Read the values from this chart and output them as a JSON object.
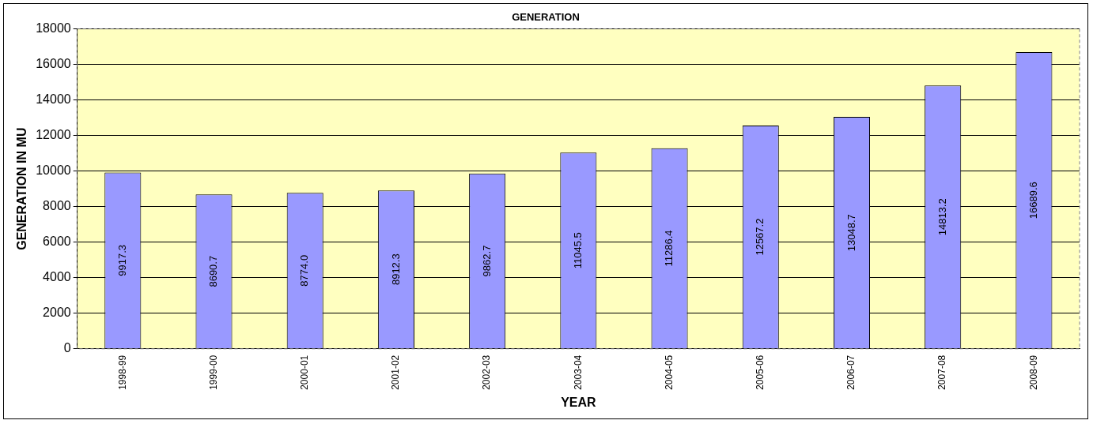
{
  "chart_data": {
    "type": "bar",
    "title": "GENERATION",
    "xlabel": "YEAR",
    "ylabel": "GENERATION IN MU",
    "categories": [
      "1998-99",
      "1999-00",
      "2000-01",
      "2001-02",
      "2002-03",
      "2003-04",
      "2004-05",
      "2005-06",
      "2006-07",
      "2007-08",
      "2008-09"
    ],
    "values": [
      9917.3,
      8690.7,
      8774.0,
      8912.3,
      9862.7,
      11045.5,
      11286.4,
      12567.2,
      13048.7,
      14813.2,
      16689.6
    ],
    "value_labels": [
      "9917.3",
      "8690.7",
      "8774.0",
      "8912.3",
      "9862.7",
      "11045.5",
      "11286.4",
      "12567.2",
      "13048.7",
      "14813.2",
      "16689.6"
    ],
    "color": "#9999ff",
    "ylim": [
      0,
      18000
    ],
    "yticks": [
      0,
      2000,
      4000,
      6000,
      8000,
      10000,
      12000,
      14000,
      16000,
      18000
    ],
    "grid": "y",
    "legend": false
  }
}
